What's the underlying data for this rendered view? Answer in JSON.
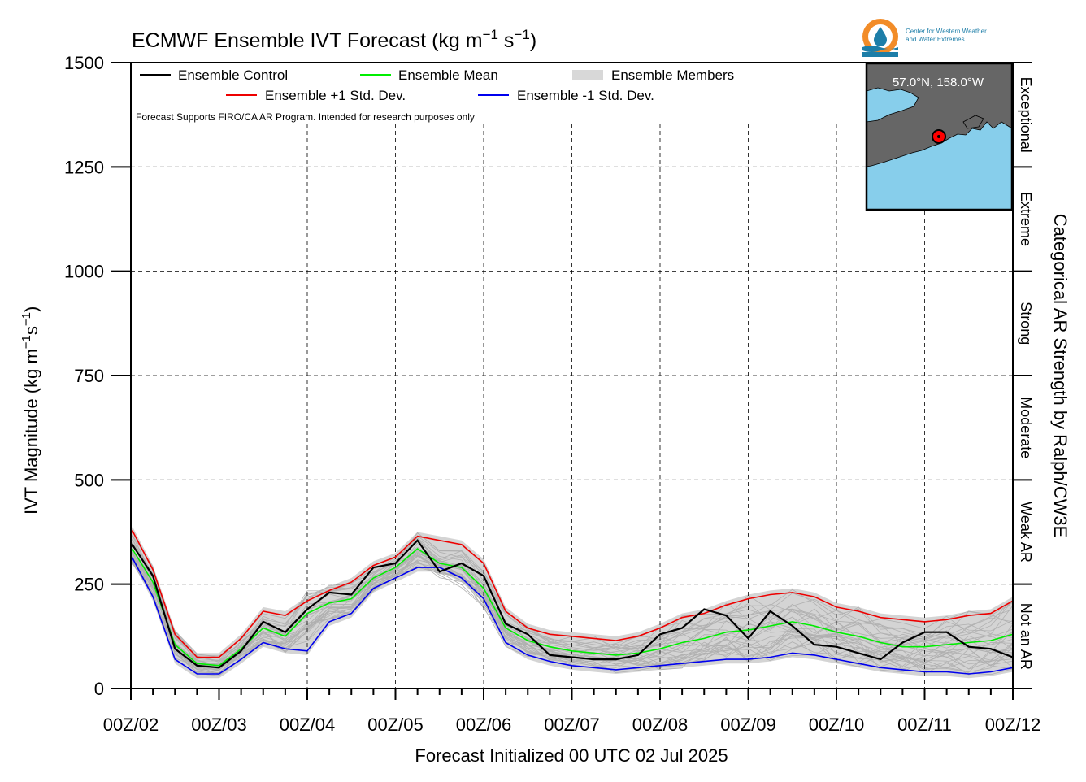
{
  "logo": {
    "line1": "Center for Western Weather",
    "line2": "and Water Extremes",
    "colors": {
      "sun": "#f28c28",
      "drop": "#1d7ea8",
      "waves": "#1d7ea8"
    }
  },
  "inset_map": {
    "location_label": "57.0°N, 158.0°W",
    "ocean_color": "#87ceeb",
    "land_color": "#666666",
    "marker_color": "#ff0000"
  },
  "chart_data": {
    "type": "line",
    "title_main": "ECMWF Ensemble IVT Forecast (kg m",
    "title_sup1": "−1",
    "title_mid": " s",
    "title_sup2": "−1",
    "title_end": ")",
    "ylabel_main": "IVT Magnitude (kg m",
    "ylabel_sup1": "−1",
    "ylabel_mid": "s",
    "ylabel_sup2": "−1",
    "ylabel_end": ")",
    "xlabel": "Forecast Initialized 00 UTC 02 Jul 2025",
    "right_axis_label": "Categorical AR Strength by Ralph/CW3E",
    "note": "Forecast Supports FIRO/CA AR Program. Intended for research purposes only",
    "ylim": [
      0,
      1500
    ],
    "yticks": [
      "0",
      "250",
      "500",
      "750",
      "1000",
      "1250",
      "1500"
    ],
    "xlim": [
      0,
      10
    ],
    "xticks": [
      "00Z/02",
      "00Z/03",
      "00Z/04",
      "00Z/05",
      "00Z/06",
      "00Z/07",
      "00Z/08",
      "00Z/09",
      "00Z/10",
      "00Z/11",
      "00Z/12"
    ],
    "grid": true,
    "legend_placement": "top-left",
    "categories": [
      {
        "label": "Not an AR",
        "range": [
          0,
          250
        ]
      },
      {
        "label": "Weak AR",
        "range": [
          250,
          500
        ]
      },
      {
        "label": "Moderate",
        "range": [
          500,
          750
        ]
      },
      {
        "label": "Strong",
        "range": [
          750,
          1000
        ]
      },
      {
        "label": "Extreme",
        "range": [
          1000,
          1250
        ]
      },
      {
        "label": "Exceptional",
        "range": [
          1250,
          1500
        ]
      }
    ],
    "x": [
      0,
      0.25,
      0.5,
      0.75,
      1,
      1.25,
      1.5,
      1.75,
      2,
      2.25,
      2.5,
      2.75,
      3,
      3.25,
      3.5,
      3.75,
      4,
      4.25,
      4.5,
      4.75,
      5,
      5.25,
      5.5,
      5.75,
      6,
      6.25,
      6.5,
      6.75,
      7,
      7.25,
      7.5,
      7.75,
      8,
      8.25,
      8.5,
      8.75,
      9,
      9.25,
      9.5,
      9.75,
      10
    ],
    "series": [
      {
        "name": "Ensemble Control",
        "color": "#000000",
        "values": [
          350,
          270,
          95,
          55,
          50,
          90,
          160,
          135,
          190,
          230,
          225,
          290,
          300,
          355,
          280,
          300,
          270,
          155,
          130,
          80,
          75,
          70,
          70,
          80,
          130,
          145,
          190,
          175,
          120,
          185,
          150,
          105,
          100,
          85,
          70,
          110,
          135,
          135,
          100,
          95,
          75
        ]
      },
      {
        "name": "Ensemble Mean",
        "color": "#00ee00",
        "values": [
          340,
          255,
          105,
          60,
          55,
          95,
          145,
          125,
          180,
          205,
          215,
          265,
          290,
          335,
          300,
          290,
          240,
          145,
          115,
          100,
          90,
          85,
          80,
          85,
          95,
          110,
          120,
          135,
          140,
          150,
          160,
          150,
          135,
          125,
          110,
          100,
          100,
          105,
          110,
          115,
          130
        ]
      },
      {
        "name": "Ensemble +1 Std. Dev.",
        "color": "#ee0000",
        "values": [
          385,
          285,
          130,
          75,
          75,
          120,
          185,
          175,
          210,
          235,
          255,
          295,
          315,
          365,
          355,
          345,
          300,
          185,
          145,
          130,
          125,
          120,
          115,
          125,
          145,
          170,
          180,
          200,
          215,
          225,
          230,
          220,
          195,
          185,
          170,
          165,
          160,
          165,
          175,
          180,
          210
        ]
      },
      {
        "name": "Ensemble -1 Std. Dev.",
        "color": "#0000ee",
        "values": [
          320,
          220,
          70,
          35,
          35,
          70,
          110,
          95,
          90,
          160,
          180,
          240,
          265,
          290,
          290,
          265,
          215,
          110,
          80,
          65,
          55,
          50,
          45,
          50,
          55,
          60,
          65,
          70,
          70,
          75,
          85,
          80,
          70,
          60,
          50,
          45,
          40,
          40,
          35,
          40,
          50
        ]
      }
    ],
    "members_legend": "Ensemble Members",
    "members_color": "#b0b0b0"
  }
}
